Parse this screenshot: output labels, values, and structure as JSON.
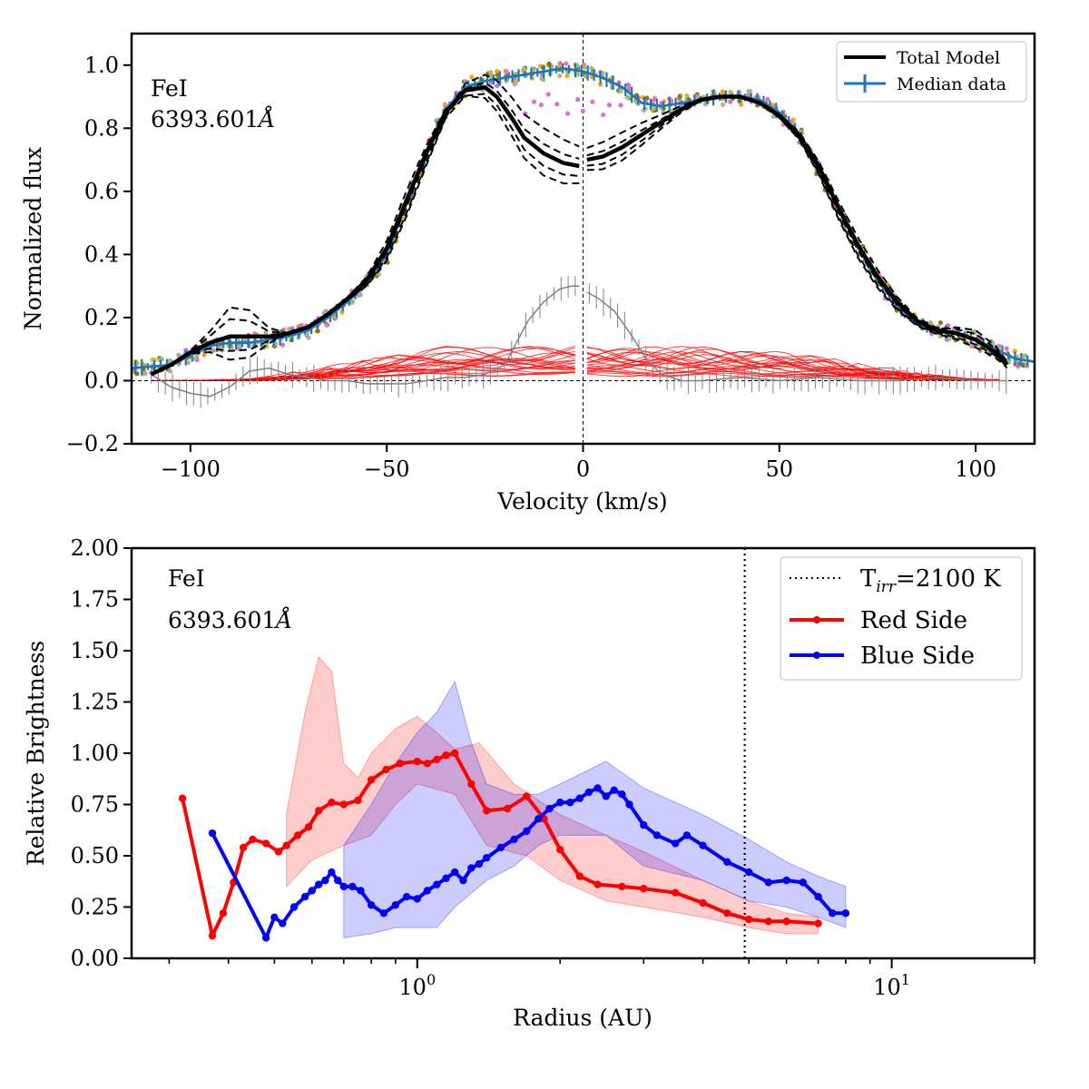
{
  "chart_data": [
    {
      "type": "line",
      "title": "",
      "annotation": {
        "line1": "FeI",
        "line2": "6393.601",
        "unit": "Å"
      },
      "xlabel": "Velocity (km/s)",
      "ylabel": "Normalized flux",
      "xlim": [
        -115,
        115
      ],
      "ylim": [
        -0.2,
        1.1
      ],
      "xticks": [
        -100,
        -50,
        0,
        50,
        100
      ],
      "xtick_labels": [
        "−100",
        "−50",
        "0",
        "50",
        "100"
      ],
      "yticks": [
        -0.2,
        0.0,
        0.2,
        0.4,
        0.6,
        0.8,
        1.0
      ],
      "ytick_labels": [
        "−0.2",
        "0.0",
        "0.2",
        "0.4",
        "0.6",
        "0.8",
        "1.0"
      ],
      "legend": {
        "position": "top-right",
        "entries": [
          "Total Model",
          "Median data"
        ]
      },
      "vertical_line_x": 0,
      "horizontal_line_y": 0,
      "series": [
        {
          "name": "Total Model",
          "color": "#000000",
          "x": [
            -110,
            -105,
            -100,
            -95,
            -90,
            -85,
            -80,
            -75,
            -70,
            -65,
            -60,
            -55,
            -50,
            -45,
            -40,
            -35,
            -30,
            -25,
            -22,
            -18,
            -15,
            -10,
            -5,
            -1
          ],
          "y": [
            0.02,
            0.05,
            0.09,
            0.12,
            0.14,
            0.14,
            0.14,
            0.15,
            0.17,
            0.21,
            0.26,
            0.32,
            0.42,
            0.57,
            0.72,
            0.85,
            0.92,
            0.93,
            0.9,
            0.83,
            0.77,
            0.72,
            0.69,
            0.68
          ]
        },
        {
          "name": "Total Model (red side)",
          "color": "#000000",
          "x": [
            1,
            5,
            10,
            15,
            20,
            25,
            30,
            35,
            40,
            45,
            50,
            55,
            60,
            65,
            70,
            75,
            80,
            85,
            90,
            95,
            100,
            105,
            108
          ],
          "y": [
            0.7,
            0.71,
            0.74,
            0.78,
            0.82,
            0.86,
            0.89,
            0.9,
            0.9,
            0.88,
            0.84,
            0.78,
            0.68,
            0.55,
            0.43,
            0.33,
            0.25,
            0.19,
            0.16,
            0.15,
            0.13,
            0.09,
            0.05
          ]
        },
        {
          "name": "Median data",
          "color": "#1f77b4",
          "x": [
            -115,
            -105,
            -100,
            -95,
            -90,
            -85,
            -80,
            -75,
            -70,
            -65,
            -60,
            -55,
            -50,
            -45,
            -40,
            -35,
            -30,
            -25,
            -20,
            -15,
            -10,
            -5,
            0,
            5,
            10,
            15,
            20,
            25,
            30,
            35,
            40,
            45,
            50,
            55,
            60,
            65,
            70,
            75,
            80,
            85,
            90,
            95,
            100,
            105,
            110,
            115
          ],
          "y": [
            0.04,
            0.05,
            0.08,
            0.11,
            0.12,
            0.12,
            0.13,
            0.14,
            0.16,
            0.2,
            0.25,
            0.31,
            0.4,
            0.56,
            0.72,
            0.86,
            0.93,
            0.95,
            0.96,
            0.97,
            0.98,
            0.99,
            0.98,
            0.96,
            0.93,
            0.88,
            0.87,
            0.88,
            0.89,
            0.9,
            0.9,
            0.89,
            0.85,
            0.78,
            0.67,
            0.55,
            0.43,
            0.32,
            0.24,
            0.18,
            0.16,
            0.15,
            0.13,
            0.1,
            0.07,
            0.06
          ]
        },
        {
          "name": "Residual",
          "color": "#808080",
          "x": [
            -110,
            -105,
            -100,
            -95,
            -90,
            -85,
            -80,
            -75,
            -70,
            -65,
            -60,
            -55,
            -50,
            -45,
            -40,
            -35,
            -30,
            -25,
            -20,
            -17,
            -14,
            -10,
            -6,
            -3,
            -1,
            1,
            4,
            8,
            12,
            16,
            20,
            25,
            30,
            40,
            50,
            60,
            70,
            80,
            90,
            100,
            108
          ],
          "y": [
            0.02,
            -0.02,
            -0.04,
            -0.05,
            -0.02,
            0.03,
            0.04,
            0.02,
            0.01,
            0.0,
            0.0,
            -0.01,
            -0.01,
            -0.01,
            0.0,
            0.01,
            0.01,
            0.02,
            0.05,
            0.12,
            0.19,
            0.25,
            0.29,
            0.3,
            0.3,
            0.28,
            0.26,
            0.22,
            0.15,
            0.07,
            0.02,
            0.0,
            0.0,
            0.01,
            0.0,
            0.01,
            0.0,
            0.0,
            0.01,
            0.0,
            0.0
          ]
        }
      ]
    },
    {
      "type": "line",
      "title": "",
      "annotation": {
        "line1": "FeI",
        "line2": "6393.601",
        "unit": "Å"
      },
      "xlabel": "Radius (AU)",
      "ylabel": "Relative Brightness",
      "xscale": "log",
      "xlim": [
        0.25,
        20
      ],
      "ylim": [
        0.0,
        2.0
      ],
      "xticks_major": [
        1,
        10
      ],
      "xtick_labels": [
        "10",
        "10"
      ],
      "xtick_exponents": [
        "0",
        "1"
      ],
      "yticks": [
        0.0,
        0.25,
        0.5,
        0.75,
        1.0,
        1.25,
        1.5,
        1.75,
        2.0
      ],
      "ytick_labels": [
        "0.00",
        "0.25",
        "0.50",
        "0.75",
        "1.00",
        "1.25",
        "1.50",
        "1.75",
        "2.00"
      ],
      "legend": {
        "position": "top-right",
        "entries": [
          "T",
          "=2100 K",
          "Red Side",
          "Blue Side"
        ],
        "t_sub": "irr"
      },
      "vertical_line_x": 4.9,
      "series": [
        {
          "name": "Red Side",
          "color": "#ff0000",
          "x": [
            0.32,
            0.37,
            0.39,
            0.41,
            0.43,
            0.45,
            0.48,
            0.51,
            0.53,
            0.56,
            0.59,
            0.62,
            0.66,
            0.7,
            0.75,
            0.8,
            0.86,
            0.92,
            1.0,
            1.05,
            1.1,
            1.15,
            1.2,
            1.3,
            1.4,
            1.55,
            1.7,
            1.85,
            2.0,
            2.2,
            2.4,
            2.7,
            3.0,
            3.5,
            4.0,
            4.5,
            5.0,
            5.5,
            6.0,
            7.0
          ],
          "y": [
            0.78,
            0.11,
            0.22,
            0.37,
            0.54,
            0.58,
            0.56,
            0.52,
            0.55,
            0.6,
            0.64,
            0.72,
            0.76,
            0.75,
            0.77,
            0.87,
            0.92,
            0.95,
            0.96,
            0.95,
            0.97,
            0.99,
            1.0,
            0.85,
            0.72,
            0.73,
            0.79,
            0.68,
            0.53,
            0.4,
            0.36,
            0.35,
            0.34,
            0.32,
            0.27,
            0.22,
            0.19,
            0.18,
            0.18,
            0.17
          ]
        },
        {
          "name": "Red Side band lower",
          "x": [
            0.53,
            0.6,
            0.7,
            0.8,
            0.9,
            1.0,
            1.2,
            1.4,
            1.7,
            2.0,
            2.5,
            3.0,
            4.0,
            5.0,
            6.0,
            7.0
          ],
          "y": [
            0.35,
            0.48,
            0.55,
            0.6,
            0.75,
            0.85,
            0.8,
            0.55,
            0.5,
            0.38,
            0.28,
            0.25,
            0.2,
            0.15,
            0.12,
            0.12
          ]
        },
        {
          "name": "Red Side band upper",
          "x": [
            0.53,
            0.58,
            0.62,
            0.66,
            0.7,
            0.75,
            0.8,
            0.9,
            1.0,
            1.1,
            1.2,
            1.35,
            1.6,
            2.0,
            2.5,
            3.0,
            4.0,
            5.0,
            6.0,
            7.0
          ],
          "y": [
            0.7,
            1.2,
            1.47,
            1.4,
            0.95,
            0.88,
            1.0,
            1.12,
            1.18,
            1.1,
            1.02,
            1.05,
            0.85,
            0.7,
            0.6,
            0.52,
            0.38,
            0.28,
            0.22,
            0.2
          ]
        },
        {
          "name": "Blue Side",
          "color": "#0000ff",
          "x": [
            0.37,
            0.48,
            0.5,
            0.52,
            0.55,
            0.58,
            0.6,
            0.62,
            0.64,
            0.66,
            0.68,
            0.7,
            0.73,
            0.76,
            0.8,
            0.85,
            0.9,
            0.95,
            1.0,
            1.05,
            1.1,
            1.15,
            1.2,
            1.25,
            1.3,
            1.35,
            1.4,
            1.5,
            1.6,
            1.7,
            1.8,
            1.9,
            2.0,
            2.1,
            2.2,
            2.3,
            2.4,
            2.5,
            2.6,
            2.7,
            2.8,
            3.0,
            3.2,
            3.5,
            3.7,
            4.0,
            4.5,
            5.0,
            5.5,
            6.0,
            6.5,
            7.0,
            7.5,
            8.0
          ],
          "y": [
            0.61,
            0.1,
            0.2,
            0.17,
            0.25,
            0.3,
            0.33,
            0.36,
            0.38,
            0.42,
            0.38,
            0.35,
            0.35,
            0.33,
            0.26,
            0.22,
            0.26,
            0.3,
            0.29,
            0.33,
            0.36,
            0.39,
            0.42,
            0.38,
            0.44,
            0.46,
            0.49,
            0.54,
            0.58,
            0.62,
            0.68,
            0.73,
            0.76,
            0.76,
            0.78,
            0.81,
            0.83,
            0.79,
            0.82,
            0.8,
            0.75,
            0.65,
            0.6,
            0.56,
            0.6,
            0.55,
            0.47,
            0.42,
            0.37,
            0.38,
            0.37,
            0.3,
            0.22,
            0.22
          ]
        },
        {
          "name": "Blue Side band lower",
          "x": [
            0.7,
            0.8,
            0.9,
            1.0,
            1.1,
            1.2,
            1.4,
            1.6,
            1.8,
            2.0,
            2.5,
            3.0,
            4.0,
            5.0,
            6.0,
            7.0,
            8.0
          ],
          "y": [
            0.1,
            0.12,
            0.15,
            0.15,
            0.15,
            0.25,
            0.38,
            0.45,
            0.55,
            0.6,
            0.6,
            0.45,
            0.38,
            0.28,
            0.25,
            0.2,
            0.15
          ]
        },
        {
          "name": "Blue Side band upper",
          "x": [
            0.7,
            0.8,
            0.9,
            1.0,
            1.1,
            1.2,
            1.3,
            1.4,
            1.6,
            1.8,
            2.0,
            2.5,
            3.0,
            4.0,
            5.0,
            6.0,
            7.0,
            8.0
          ],
          "y": [
            0.55,
            0.75,
            0.95,
            1.1,
            1.2,
            1.35,
            1.05,
            0.85,
            0.8,
            0.8,
            0.85,
            0.96,
            0.83,
            0.7,
            0.58,
            0.47,
            0.4,
            0.35
          ]
        }
      ]
    }
  ]
}
